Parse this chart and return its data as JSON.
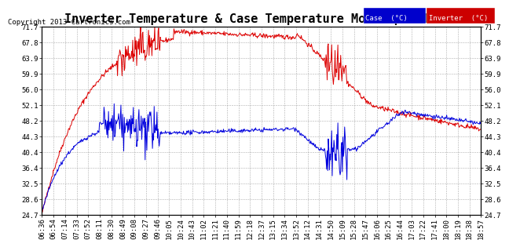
{
  "title": "Inverter Temperature & Case Temperature Mon Sep 9 19:07",
  "copyright": "Copyright 2013 Cartronics.com",
  "legend_case_label": "Case  (°C)",
  "legend_inverter_label": "Inverter  (°C)",
  "case_color": "#0000dd",
  "inverter_color": "#dd0000",
  "legend_case_bg": "#0000cc",
  "legend_inverter_bg": "#cc0000",
  "background_color": "#ffffff",
  "plot_bg_color": "#ffffff",
  "grid_color": "#999999",
  "yticks": [
    24.7,
    28.6,
    32.5,
    36.4,
    40.4,
    44.3,
    48.2,
    52.1,
    56.0,
    59.9,
    63.9,
    67.8,
    71.7
  ],
  "xtick_labels": [
    "06:36",
    "06:54",
    "07:14",
    "07:33",
    "07:52",
    "08:11",
    "08:30",
    "08:49",
    "09:08",
    "09:27",
    "09:46",
    "10:05",
    "10:24",
    "10:43",
    "11:02",
    "11:21",
    "11:40",
    "11:59",
    "12:18",
    "12:37",
    "13:15",
    "13:34",
    "13:52",
    "14:12",
    "14:31",
    "14:50",
    "15:09",
    "15:28",
    "15:47",
    "16:06",
    "16:25",
    "16:44",
    "17:03",
    "17:22",
    "17:41",
    "18:00",
    "18:19",
    "18:38",
    "18:57"
  ],
  "ymin": 24.7,
  "ymax": 71.7,
  "title_fontsize": 11,
  "axis_fontsize": 6.5,
  "copyright_fontsize": 6.5
}
